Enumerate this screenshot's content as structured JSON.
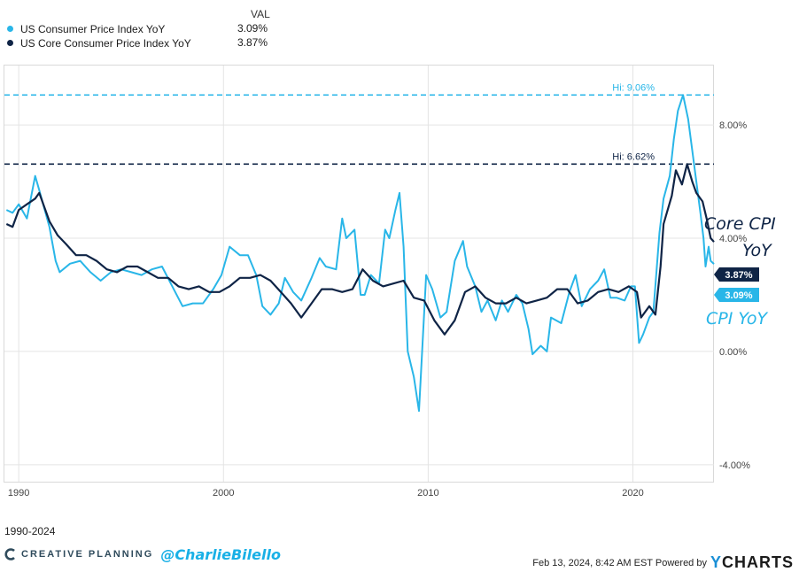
{
  "legend": {
    "header": "VAL",
    "items": [
      {
        "label": "US Consumer Price Index YoY",
        "value": "3.09%",
        "color": "#29b6e8"
      },
      {
        "label": "US Core Consumer Price Index YoY",
        "value": "3.87%",
        "color": "#0f2446"
      }
    ]
  },
  "chart_data": {
    "type": "line",
    "xlim": [
      1989.3,
      2023.96
    ],
    "ylim": [
      -4.6,
      10.1
    ],
    "x_ticks": [
      1990,
      2000,
      2010,
      2020
    ],
    "x_tick_labels": [
      "1990",
      "2000",
      "2010",
      "2020"
    ],
    "y_ticks": [
      8,
      4,
      0,
      -4
    ],
    "y_tick_labels": [
      "8.00%",
      "4.00%",
      "0.00%",
      "-4.00%"
    ],
    "grid": true,
    "series": [
      {
        "name": "US Consumer Price Index YoY",
        "color": "#29b6e8",
        "last_value": 3.09,
        "last_value_label": "3.09%",
        "high": 9.06,
        "high_label": "Hi: 9.06%",
        "points": [
          [
            1989.4,
            5.0
          ],
          [
            1989.7,
            4.9
          ],
          [
            1990.0,
            5.2
          ],
          [
            1990.4,
            4.7
          ],
          [
            1990.8,
            6.2
          ],
          [
            1991.0,
            5.7
          ],
          [
            1991.5,
            4.4
          ],
          [
            1991.8,
            3.2
          ],
          [
            1992.0,
            2.8
          ],
          [
            1992.5,
            3.1
          ],
          [
            1993.0,
            3.2
          ],
          [
            1993.5,
            2.8
          ],
          [
            1994.0,
            2.5
          ],
          [
            1994.5,
            2.8
          ],
          [
            1995.0,
            2.9
          ],
          [
            1995.5,
            2.8
          ],
          [
            1996.0,
            2.7
          ],
          [
            1996.5,
            2.9
          ],
          [
            1997.0,
            3.0
          ],
          [
            1997.5,
            2.3
          ],
          [
            1998.0,
            1.6
          ],
          [
            1998.5,
            1.7
          ],
          [
            1999.0,
            1.7
          ],
          [
            1999.5,
            2.2
          ],
          [
            1999.9,
            2.7
          ],
          [
            2000.3,
            3.7
          ],
          [
            2000.8,
            3.4
          ],
          [
            2001.2,
            3.4
          ],
          [
            2001.6,
            2.7
          ],
          [
            2001.9,
            1.6
          ],
          [
            2002.3,
            1.3
          ],
          [
            2002.7,
            1.7
          ],
          [
            2003.0,
            2.6
          ],
          [
            2003.4,
            2.1
          ],
          [
            2003.8,
            1.8
          ],
          [
            2004.3,
            2.6
          ],
          [
            2004.7,
            3.3
          ],
          [
            2005.0,
            3.0
          ],
          [
            2005.5,
            2.9
          ],
          [
            2005.8,
            4.7
          ],
          [
            2006.0,
            4.0
          ],
          [
            2006.4,
            4.3
          ],
          [
            2006.7,
            2.0
          ],
          [
            2006.9,
            2.0
          ],
          [
            2007.2,
            2.7
          ],
          [
            2007.6,
            2.4
          ],
          [
            2007.9,
            4.3
          ],
          [
            2008.1,
            4.0
          ],
          [
            2008.4,
            5.0
          ],
          [
            2008.6,
            5.6
          ],
          [
            2008.8,
            3.7
          ],
          [
            2009.0,
            0.0
          ],
          [
            2009.3,
            -0.9
          ],
          [
            2009.55,
            -2.1
          ],
          [
            2009.9,
            2.7
          ],
          [
            2010.2,
            2.2
          ],
          [
            2010.6,
            1.2
          ],
          [
            2010.9,
            1.4
          ],
          [
            2011.3,
            3.2
          ],
          [
            2011.7,
            3.9
          ],
          [
            2011.9,
            3.0
          ],
          [
            2012.3,
            2.3
          ],
          [
            2012.6,
            1.4
          ],
          [
            2012.9,
            1.8
          ],
          [
            2013.3,
            1.1
          ],
          [
            2013.6,
            1.8
          ],
          [
            2013.9,
            1.4
          ],
          [
            2014.3,
            2.0
          ],
          [
            2014.6,
            1.7
          ],
          [
            2014.9,
            0.8
          ],
          [
            2015.1,
            -0.1
          ],
          [
            2015.5,
            0.2
          ],
          [
            2015.8,
            0.0
          ],
          [
            2016.0,
            1.2
          ],
          [
            2016.5,
            1.0
          ],
          [
            2016.9,
            2.1
          ],
          [
            2017.2,
            2.7
          ],
          [
            2017.5,
            1.6
          ],
          [
            2017.9,
            2.2
          ],
          [
            2018.3,
            2.5
          ],
          [
            2018.6,
            2.9
          ],
          [
            2018.9,
            1.9
          ],
          [
            2019.2,
            1.9
          ],
          [
            2019.6,
            1.8
          ],
          [
            2019.9,
            2.3
          ],
          [
            2020.1,
            2.3
          ],
          [
            2020.3,
            0.3
          ],
          [
            2020.5,
            0.6
          ],
          [
            2020.8,
            1.2
          ],
          [
            2021.0,
            1.4
          ],
          [
            2021.3,
            4.2
          ],
          [
            2021.5,
            5.4
          ],
          [
            2021.8,
            6.2
          ],
          [
            2022.0,
            7.5
          ],
          [
            2022.2,
            8.5
          ],
          [
            2022.45,
            9.06
          ],
          [
            2022.7,
            8.2
          ],
          [
            2022.9,
            7.1
          ],
          [
            2023.1,
            6.0
          ],
          [
            2023.3,
            4.9
          ],
          [
            2023.45,
            4.0
          ],
          [
            2023.55,
            3.0
          ],
          [
            2023.7,
            3.7
          ],
          [
            2023.8,
            3.2
          ],
          [
            2023.96,
            3.09
          ]
        ]
      },
      {
        "name": "US Core Consumer Price Index YoY",
        "color": "#0f2446",
        "last_value": 3.87,
        "last_value_label": "3.87%",
        "high": 6.62,
        "high_label": "Hi: 6.62%",
        "points": [
          [
            1989.4,
            4.5
          ],
          [
            1989.7,
            4.4
          ],
          [
            1990.0,
            5.0
          ],
          [
            1990.4,
            5.2
          ],
          [
            1990.8,
            5.4
          ],
          [
            1991.0,
            5.6
          ],
          [
            1991.5,
            4.6
          ],
          [
            1991.9,
            4.1
          ],
          [
            1992.3,
            3.8
          ],
          [
            1992.8,
            3.4
          ],
          [
            1993.3,
            3.4
          ],
          [
            1993.8,
            3.2
          ],
          [
            1994.3,
            2.9
          ],
          [
            1994.8,
            2.8
          ],
          [
            1995.3,
            3.0
          ],
          [
            1995.8,
            3.0
          ],
          [
            1996.3,
            2.8
          ],
          [
            1996.8,
            2.6
          ],
          [
            1997.3,
            2.6
          ],
          [
            1997.8,
            2.3
          ],
          [
            1998.3,
            2.2
          ],
          [
            1998.8,
            2.3
          ],
          [
            1999.3,
            2.1
          ],
          [
            1999.8,
            2.1
          ],
          [
            2000.3,
            2.3
          ],
          [
            2000.8,
            2.6
          ],
          [
            2001.3,
            2.6
          ],
          [
            2001.8,
            2.7
          ],
          [
            2002.3,
            2.5
          ],
          [
            2002.8,
            2.1
          ],
          [
            2003.3,
            1.7
          ],
          [
            2003.8,
            1.2
          ],
          [
            2004.3,
            1.7
          ],
          [
            2004.8,
            2.2
          ],
          [
            2005.3,
            2.2
          ],
          [
            2005.8,
            2.1
          ],
          [
            2006.3,
            2.2
          ],
          [
            2006.8,
            2.9
          ],
          [
            2007.3,
            2.5
          ],
          [
            2007.8,
            2.3
          ],
          [
            2008.3,
            2.4
          ],
          [
            2008.8,
            2.5
          ],
          [
            2009.3,
            1.9
          ],
          [
            2009.8,
            1.8
          ],
          [
            2010.3,
            1.1
          ],
          [
            2010.8,
            0.6
          ],
          [
            2011.3,
            1.1
          ],
          [
            2011.8,
            2.1
          ],
          [
            2012.3,
            2.3
          ],
          [
            2012.8,
            1.9
          ],
          [
            2013.3,
            1.7
          ],
          [
            2013.8,
            1.7
          ],
          [
            2014.3,
            1.9
          ],
          [
            2014.8,
            1.7
          ],
          [
            2015.3,
            1.8
          ],
          [
            2015.8,
            1.9
          ],
          [
            2016.3,
            2.2
          ],
          [
            2016.8,
            2.2
          ],
          [
            2017.3,
            1.7
          ],
          [
            2017.8,
            1.8
          ],
          [
            2018.3,
            2.1
          ],
          [
            2018.8,
            2.2
          ],
          [
            2019.3,
            2.1
          ],
          [
            2019.8,
            2.3
          ],
          [
            2020.2,
            2.1
          ],
          [
            2020.4,
            1.2
          ],
          [
            2020.8,
            1.6
          ],
          [
            2021.1,
            1.3
          ],
          [
            2021.35,
            3.0
          ],
          [
            2021.5,
            4.5
          ],
          [
            2021.9,
            5.5
          ],
          [
            2022.1,
            6.4
          ],
          [
            2022.4,
            5.9
          ],
          [
            2022.65,
            6.62
          ],
          [
            2022.9,
            6.0
          ],
          [
            2023.1,
            5.6
          ],
          [
            2023.4,
            5.3
          ],
          [
            2023.6,
            4.7
          ],
          [
            2023.8,
            4.0
          ],
          [
            2023.96,
            3.87
          ]
        ]
      }
    ]
  },
  "annotations": {
    "core_label_line1": "Core CPI",
    "core_label_line2": "YoY",
    "cpi_label": "CPI YoY"
  },
  "footer": {
    "period": "1990-2024",
    "brand_name": "CREATIVE PLANNING",
    "handle": "@CharlieBilello",
    "timestamp": "Feb 13, 2024, 8:42 AM EST Powered by",
    "ycharts_y": "Y",
    "ycharts_rest": "CHARTS"
  }
}
